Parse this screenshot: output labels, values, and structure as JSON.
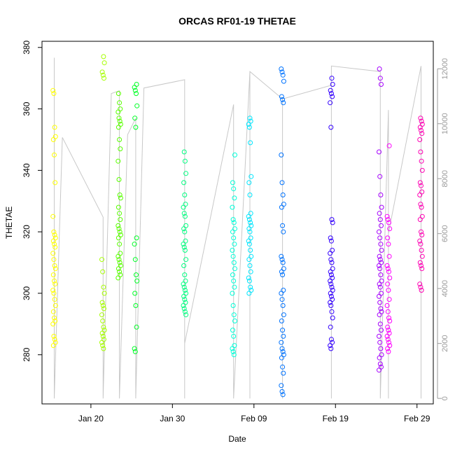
{
  "chart_data": {
    "type": "scatter",
    "title": "ORCAS RF01-19 THETAE",
    "xlabel": "Date",
    "ylabel": "THETAE",
    "x_axis": {
      "range": [
        "2016-01-14",
        "2016-03-02"
      ],
      "ticks": [
        {
          "date": "2016-01-20",
          "label": "Jan 20"
        },
        {
          "date": "2016-01-30",
          "label": "Jan 30"
        },
        {
          "date": "2016-02-09",
          "label": "Feb 09"
        },
        {
          "date": "2016-02-19",
          "label": "Feb 19"
        },
        {
          "date": "2016-02-29",
          "label": "Feb 29"
        }
      ]
    },
    "y_axis": {
      "range": [
        264,
        382
      ],
      "ticks": [
        280,
        300,
        320,
        340,
        360,
        380
      ]
    },
    "y2_axis": {
      "range": [
        -200,
        13000
      ],
      "ticks": [
        0,
        2000,
        4000,
        6000,
        8000,
        10000,
        12000
      ],
      "color": "#9a9a9a"
    },
    "grid": false,
    "legend": "none",
    "altitude_line": {
      "color": "#c8c8c8",
      "points": [
        [
          "2016-01-15",
          12400
        ],
        [
          "2016-01-15",
          0
        ],
        [
          "2016-01-16",
          9500
        ],
        [
          "2016-01-21",
          6600
        ],
        [
          "2016-01-21",
          0
        ],
        [
          "2016-01-22",
          11100
        ],
        [
          "2016-01-23",
          11200
        ],
        [
          "2016-01-23",
          0
        ],
        [
          "2016-01-24",
          9600
        ],
        [
          "2016-01-25",
          10200
        ],
        [
          "2016-01-25",
          0
        ],
        [
          "2016-01-26",
          11300
        ],
        [
          "2016-01-31",
          11600
        ],
        [
          "2016-01-31",
          0
        ],
        [
          "2016-01-31",
          2000
        ],
        [
          "2016-02-06",
          10700
        ],
        [
          "2016-02-06",
          0
        ],
        [
          "2016-02-08",
          11900
        ],
        [
          "2016-02-08",
          0
        ],
        [
          "2016-02-08",
          11900
        ],
        [
          "2016-02-12",
          10900
        ],
        [
          "2016-02-12",
          0
        ],
        [
          "2016-02-12",
          10900
        ],
        [
          "2016-02-18",
          11400
        ],
        [
          "2016-02-18",
          0
        ],
        [
          "2016-02-18",
          12100
        ],
        [
          "2016-02-24",
          11900
        ],
        [
          "2016-02-24",
          0
        ],
        [
          "2016-02-25",
          10500
        ],
        [
          "2016-02-25",
          0
        ],
        [
          "2016-02-25",
          6000
        ],
        [
          "2016-02-29",
          12100
        ],
        [
          "2016-02-29",
          0
        ]
      ]
    },
    "series": [
      {
        "date": "2016-01-15",
        "color": "#ffff00",
        "values": [
          366,
          365,
          354,
          351,
          350,
          345,
          336,
          325,
          320,
          319,
          318,
          317,
          316,
          315,
          313,
          311,
          309,
          308,
          306,
          304,
          303,
          301,
          300,
          298,
          296,
          294,
          292,
          291,
          290,
          286,
          285,
          284,
          283
        ]
      },
      {
        "date": "2016-01-21",
        "color": "#a6ff00",
        "values": [
          377,
          375,
          372,
          371,
          370,
          311,
          307,
          302,
          300,
          297,
          296,
          295,
          293,
          291,
          289,
          288,
          287,
          286,
          285,
          284,
          283,
          282
        ]
      },
      {
        "date": "2016-01-23",
        "color": "#59ff00",
        "values": [
          365,
          362,
          360,
          359,
          357,
          356,
          355,
          354,
          350,
          347,
          343,
          337,
          332,
          331,
          328,
          326,
          324,
          322,
          321,
          320,
          319,
          318,
          316,
          313,
          312,
          311,
          310,
          309,
          308,
          307,
          306,
          305
        ]
      },
      {
        "date": "2016-01-25",
        "color": "#00ff26",
        "values": [
          368,
          367,
          366,
          365,
          361,
          357,
          354,
          318,
          316,
          311,
          306,
          304,
          300,
          296,
          289,
          282,
          281
        ]
      },
      {
        "date": "2016-01-31",
        "color": "#00ff80",
        "values": [
          346,
          343,
          339,
          336,
          332,
          329,
          328,
          326,
          325,
          322,
          321,
          320,
          317,
          316,
          315,
          314,
          311,
          309,
          306,
          304,
          303,
          302,
          301,
          300,
          299,
          298,
          297,
          296,
          295,
          294,
          293
        ]
      },
      {
        "date": "2016-02-06",
        "color": "#00ffd9",
        "values": [
          345,
          336,
          334,
          331,
          328,
          324,
          323,
          321,
          320,
          318,
          316,
          314,
          312,
          310,
          308,
          306,
          304,
          302,
          300,
          296,
          293,
          291,
          288,
          286,
          283,
          282,
          281,
          280
        ]
      },
      {
        "date": "2016-02-08",
        "color": "#00e6ff",
        "values": [
          357,
          356,
          355,
          354,
          349,
          338,
          336,
          332,
          326,
          325,
          324,
          323,
          322,
          321,
          320,
          318,
          317,
          316,
          314,
          312,
          311,
          309,
          307,
          305,
          304,
          302,
          301,
          300
        ]
      },
      {
        "date": "2016-02-12",
        "color": "#0073ff",
        "values": [
          373,
          372,
          371,
          369,
          364,
          363,
          362,
          345,
          336,
          332,
          329,
          328,
          322,
          320,
          312,
          311,
          310,
          308,
          307,
          306,
          301,
          300,
          298,
          296,
          293,
          291,
          288,
          286,
          284,
          282,
          281,
          280,
          279,
          276,
          274,
          270,
          268,
          267
        ]
      },
      {
        "date": "2016-02-18",
        "color": "#3300ff",
        "values": [
          370,
          368,
          366,
          365,
          364,
          362,
          354,
          324,
          323,
          318,
          317,
          314,
          313,
          311,
          310,
          308,
          307,
          306,
          305,
          304,
          303,
          302,
          301,
          300,
          299,
          298,
          297,
          296,
          294,
          292,
          289,
          285,
          284,
          283,
          282
        ]
      },
      {
        "date": "2016-02-24",
        "color": "#a600ff",
        "values": [
          373,
          370,
          368,
          346,
          338,
          332,
          328,
          326,
          324,
          322,
          320,
          318,
          316,
          314,
          312,
          311,
          310,
          309,
          308,
          306,
          304,
          303,
          302,
          300,
          299,
          297,
          295,
          294,
          293,
          290,
          288,
          286,
          284,
          282,
          280,
          279,
          277,
          276,
          275
        ]
      },
      {
        "date": "2016-02-25",
        "color": "#ff00ff",
        "values": [
          348,
          325,
          324,
          323,
          321,
          318,
          316,
          312,
          309,
          308,
          307,
          305,
          303,
          301,
          298,
          296,
          294,
          292,
          291,
          289,
          288,
          287,
          286,
          285,
          284,
          283,
          282,
          281
        ]
      },
      {
        "date": "2016-02-29",
        "color": "#ff00b3",
        "values": [
          357,
          356,
          355,
          354,
          353,
          352,
          350,
          346,
          343,
          340,
          336,
          335,
          333,
          332,
          329,
          328,
          325,
          324,
          320,
          319,
          317,
          316,
          314,
          312,
          310,
          309,
          308,
          303,
          302,
          301
        ]
      }
    ]
  }
}
